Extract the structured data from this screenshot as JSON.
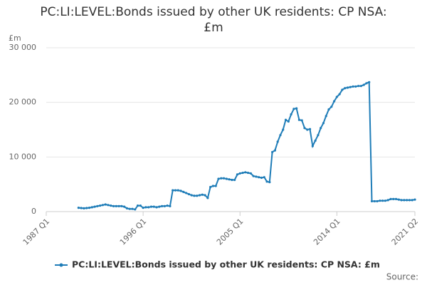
{
  "chart_data": {
    "type": "line",
    "title": "PC:LI:LEVEL:Bonds issued by other UK residents: CP NSA: £m",
    "y_label": "£m",
    "source": "Source:",
    "categories": [
      "1987 Q1",
      null,
      null,
      null,
      null,
      null,
      null,
      null,
      null,
      null,
      null,
      null,
      null,
      null,
      null,
      null,
      null,
      null,
      null,
      null,
      null,
      null,
      null,
      null,
      null,
      null,
      null,
      null,
      null,
      null,
      null,
      null,
      null,
      null,
      null,
      null,
      "1996 Q1",
      null,
      null,
      null,
      null,
      null,
      null,
      null,
      null,
      null,
      null,
      null,
      null,
      null,
      null,
      null,
      null,
      null,
      null,
      null,
      null,
      null,
      null,
      null,
      null,
      null,
      null,
      null,
      null,
      null,
      null,
      null,
      null,
      null,
      null,
      null,
      "2005 Q1",
      null,
      null,
      null,
      null,
      null,
      null,
      null,
      null,
      null,
      null,
      null,
      null,
      null,
      null,
      null,
      null,
      null,
      null,
      null,
      null,
      null,
      null,
      null,
      null,
      null,
      null,
      null,
      null,
      null,
      null,
      null,
      null,
      null,
      null,
      null,
      "2014 Q1",
      null,
      null,
      null,
      null,
      null,
      null,
      null,
      null,
      null,
      null,
      null,
      null,
      null,
      null,
      null,
      null,
      null,
      null,
      null,
      null,
      null,
      null,
      null,
      null,
      null,
      null,
      null,
      null,
      "2021 Q2"
    ],
    "series": [
      {
        "name": "PC:LI:LEVEL:Bonds issued by other UK residents: CP NSA: £m",
        "color": "#1f7db8",
        "values": [
          null,
          null,
          null,
          null,
          null,
          null,
          null,
          null,
          null,
          null,
          null,
          null,
          700,
          650,
          600,
          650,
          700,
          800,
          900,
          1000,
          1100,
          1200,
          1300,
          1200,
          1100,
          1000,
          1000,
          1000,
          1000,
          900,
          600,
          500,
          500,
          400,
          1100,
          1100,
          700,
          800,
          800,
          900,
          900,
          800,
          900,
          1000,
          1000,
          1100,
          1000,
          3900,
          3900,
          3900,
          3800,
          3600,
          3400,
          3200,
          3000,
          2900,
          2900,
          3000,
          3100,
          3000,
          2500,
          4500,
          4700,
          4700,
          6000,
          6100,
          6100,
          6000,
          5900,
          5800,
          5800,
          6800,
          7000,
          7100,
          7200,
          7100,
          7000,
          6500,
          6400,
          6300,
          6200,
          6300,
          5500,
          5400,
          10900,
          11200,
          12800,
          14000,
          15000,
          16800,
          16500,
          17800,
          18800,
          18900,
          16800,
          16700,
          15300,
          15000,
          15100,
          12000,
          13000,
          14000,
          15300,
          16200,
          17500,
          18700,
          19200,
          20200,
          21000,
          21500,
          22300,
          22600,
          22700,
          22800,
          22900,
          22900,
          23000,
          23000,
          23200,
          23500,
          23700,
          1900,
          1900,
          1900,
          2000,
          2000,
          2000,
          2100,
          2300,
          2300,
          2300,
          2200,
          2100,
          2100,
          2100,
          2100,
          2100,
          2200
        ]
      }
    ],
    "ylim": [
      0,
      30000
    ],
    "yticks": [
      0,
      {
        "value": 10000,
        "label": "10 000"
      },
      {
        "value": 20000,
        "label": "20 000"
      },
      {
        "value": 30000,
        "label": "30 000"
      }
    ],
    "grid": true
  }
}
